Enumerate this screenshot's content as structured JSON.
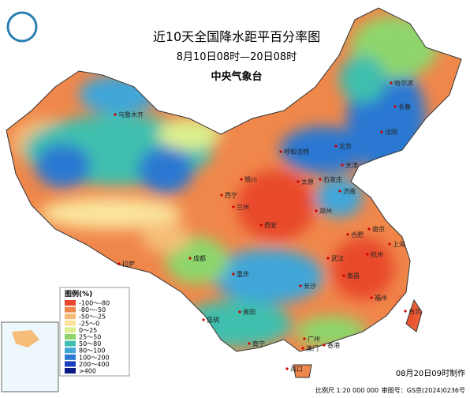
{
  "header": {
    "title": "近10天全国降水距平百分率图",
    "subtitle": "8月10日08时—20日08时",
    "agency": "中央气象台"
  },
  "legend": {
    "title": "图例(%)",
    "items": [
      {
        "label": "-100～-80",
        "color": "#e8482c"
      },
      {
        "label": "-80～-50",
        "color": "#f0874a"
      },
      {
        "label": "-50～-25",
        "color": "#f6bd78"
      },
      {
        "label": "-25～0",
        "color": "#fbe49c"
      },
      {
        "label": "0～25",
        "color": "#dcef8c"
      },
      {
        "label": "25～50",
        "color": "#8ed66c"
      },
      {
        "label": "50～80",
        "color": "#3fbfae"
      },
      {
        "label": "80～100",
        "color": "#40a6d8"
      },
      {
        "label": "100～200",
        "color": "#2a78d2"
      },
      {
        "label": "200～400",
        "color": "#1b3fc0"
      },
      {
        "label": ">400",
        "color": "#0b1a86"
      }
    ]
  },
  "cities": [
    "乌鲁木齐",
    "哈尔滨",
    "长春",
    "沈阳",
    "呼和浩特",
    "北京",
    "天津",
    "石家庄",
    "太原",
    "济南",
    "银川",
    "西宁",
    "兰州",
    "郑州",
    "西安",
    "合肥",
    "南京",
    "上海",
    "杭州",
    "武汉",
    "成都",
    "拉萨",
    "重庆",
    "长沙",
    "南昌",
    "福州",
    "台北",
    "贵阳",
    "昆明",
    "南宁",
    "广州",
    "香港",
    "澳门",
    "海口"
  ],
  "footer": {
    "made": "08月20日09时制作",
    "scale": "比例尺 1:20 000 000",
    "approval": "审图号：GS京(2024)0236号"
  }
}
